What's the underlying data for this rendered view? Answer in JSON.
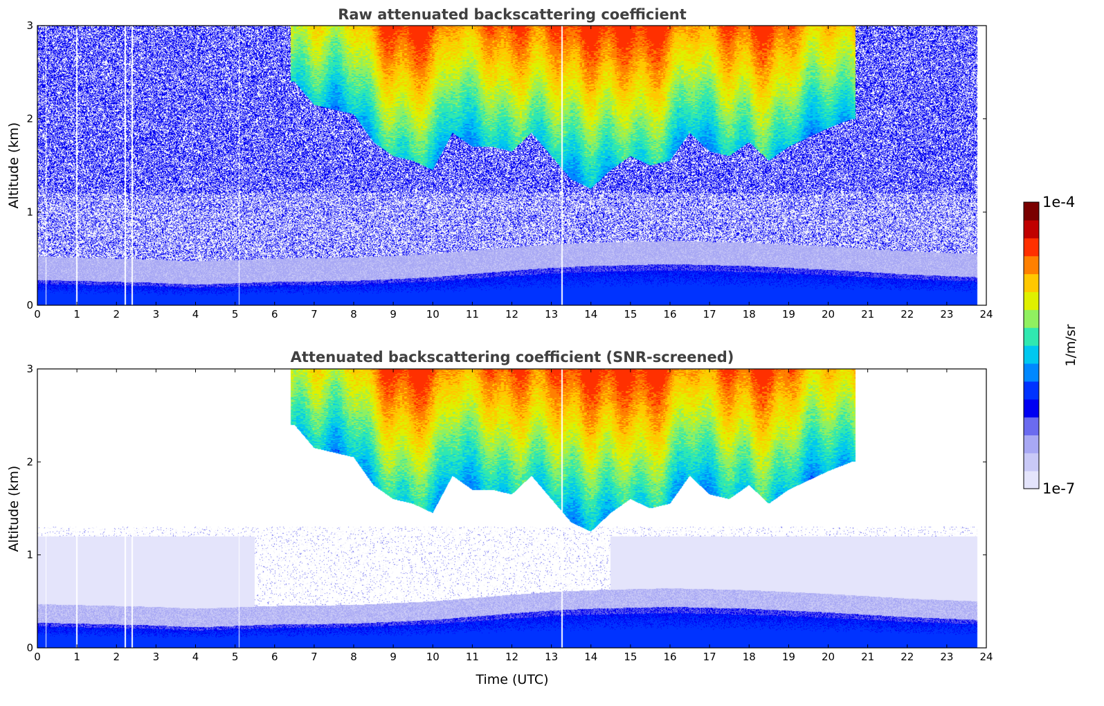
{
  "colors": {
    "background": "#ffffff",
    "title": "#404040",
    "colormap": [
      "#e4e4fb",
      "#c9c9f7",
      "#a8a8f4",
      "#6b6bef",
      "#0000f2",
      "#0033ff",
      "#0088ff",
      "#00c8ef",
      "#30e8b0",
      "#90f060",
      "#dff000",
      "#ffc800",
      "#ff8000",
      "#ff3000",
      "#c00000",
      "#7a0000"
    ]
  },
  "chart_data": [
    {
      "type": "heatmap",
      "title": "Raw attenuated backscattering coefficient",
      "xlabel": "",
      "ylabel": "Altitude (km)",
      "xlim": [
        0,
        24
      ],
      "ylim": [
        0,
        3
      ],
      "xticks": [
        "0",
        "1",
        "2",
        "3",
        "4",
        "5",
        "6",
        "7",
        "8",
        "9",
        "10",
        "11",
        "12",
        "13",
        "14",
        "15",
        "16",
        "17",
        "18",
        "19",
        "20",
        "21",
        "22",
        "23",
        "24"
      ],
      "yticks": [
        "0",
        "1",
        "2",
        "3"
      ],
      "screened": false,
      "data_end_hour": 23.77,
      "gap_times_utc": [
        0.22,
        1.0,
        2.22,
        2.4,
        5.1,
        13.27
      ],
      "boundary_layer_top_km": {
        "x": [
          0,
          2,
          3,
          4,
          6,
          8,
          10,
          12,
          13,
          14,
          16,
          18,
          20,
          22,
          23.77
        ],
        "y": [
          0.27,
          0.25,
          0.24,
          0.22,
          0.25,
          0.26,
          0.3,
          0.37,
          0.4,
          0.42,
          0.44,
          0.42,
          0.38,
          0.33,
          0.3
        ]
      },
      "cloud_base_km": {
        "x": [
          6.5,
          7,
          8,
          8.5,
          9,
          9.5,
          10,
          10.5,
          11,
          11.5,
          12,
          12.5,
          13,
          13.5,
          14,
          14.5,
          15,
          15.5,
          16,
          16.5,
          17,
          17.5,
          18,
          18.5,
          19,
          19.5,
          20,
          20.6
        ],
        "y": [
          2.4,
          2.15,
          2.05,
          1.75,
          1.6,
          1.55,
          1.45,
          1.85,
          1.7,
          1.7,
          1.65,
          1.85,
          1.6,
          1.35,
          1.25,
          1.45,
          1.6,
          1.5,
          1.55,
          1.85,
          1.65,
          1.6,
          1.75,
          1.55,
          1.7,
          1.8,
          1.9,
          2.0
        ]
      },
      "colorbar": {
        "min": "1e-7",
        "max": "1e-4",
        "label": "1/m/sr",
        "scale": "log"
      }
    },
    {
      "type": "heatmap",
      "title": "Attenuated backscattering coefficient (SNR-screened)",
      "xlabel": "Time (UTC)",
      "ylabel": "Altitude (km)",
      "xlim": [
        0,
        24
      ],
      "ylim": [
        0,
        3
      ],
      "xticks": [
        "0",
        "1",
        "2",
        "3",
        "4",
        "5",
        "6",
        "7",
        "8",
        "9",
        "10",
        "11",
        "12",
        "13",
        "14",
        "15",
        "16",
        "17",
        "18",
        "19",
        "20",
        "21",
        "22",
        "23",
        "24"
      ],
      "yticks": [
        "0",
        "1",
        "2",
        "3"
      ],
      "screened": true,
      "data_end_hour": 23.77,
      "gap_times_utc": [
        0.22,
        1.0,
        2.22,
        2.4,
        5.1,
        13.27
      ],
      "boundary_layer_top_km": {
        "x": [
          0,
          2,
          3,
          4,
          6,
          8,
          10,
          12,
          13,
          14,
          16,
          18,
          20,
          22,
          23.77
        ],
        "y": [
          0.27,
          0.25,
          0.24,
          0.22,
          0.25,
          0.26,
          0.3,
          0.37,
          0.4,
          0.42,
          0.44,
          0.42,
          0.38,
          0.33,
          0.3
        ]
      },
      "cloud_base_km": {
        "x": [
          6.5,
          7,
          8,
          8.5,
          9,
          9.5,
          10,
          10.5,
          11,
          11.5,
          12,
          12.5,
          13,
          13.5,
          14,
          14.5,
          15,
          15.5,
          16,
          16.5,
          17,
          17.5,
          18,
          18.5,
          19,
          19.5,
          20,
          20.6
        ],
        "y": [
          2.4,
          2.15,
          2.05,
          1.75,
          1.6,
          1.55,
          1.45,
          1.85,
          1.7,
          1.7,
          1.65,
          1.85,
          1.6,
          1.35,
          1.25,
          1.45,
          1.6,
          1.5,
          1.55,
          1.85,
          1.65,
          1.6,
          1.75,
          1.55,
          1.7,
          1.8,
          1.9,
          2.0
        ]
      },
      "colorbar": {
        "min": "1e-7",
        "max": "1e-4",
        "label": "1/m/sr",
        "scale": "log"
      }
    }
  ]
}
